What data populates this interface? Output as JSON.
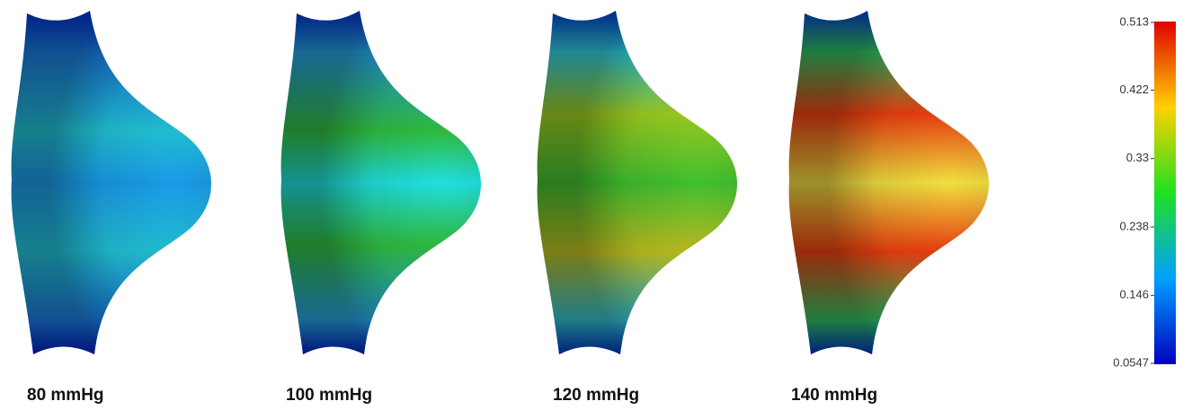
{
  "panels": [
    {
      "label": "80 mmHg"
    },
    {
      "label": "100 mmHg"
    },
    {
      "label": "120 mmHg"
    },
    {
      "label": "140 mmHg"
    }
  ],
  "colorbar": {
    "ticks": [
      0.513,
      0.422,
      0.33,
      0.238,
      0.146,
      0.0547
    ]
  }
}
